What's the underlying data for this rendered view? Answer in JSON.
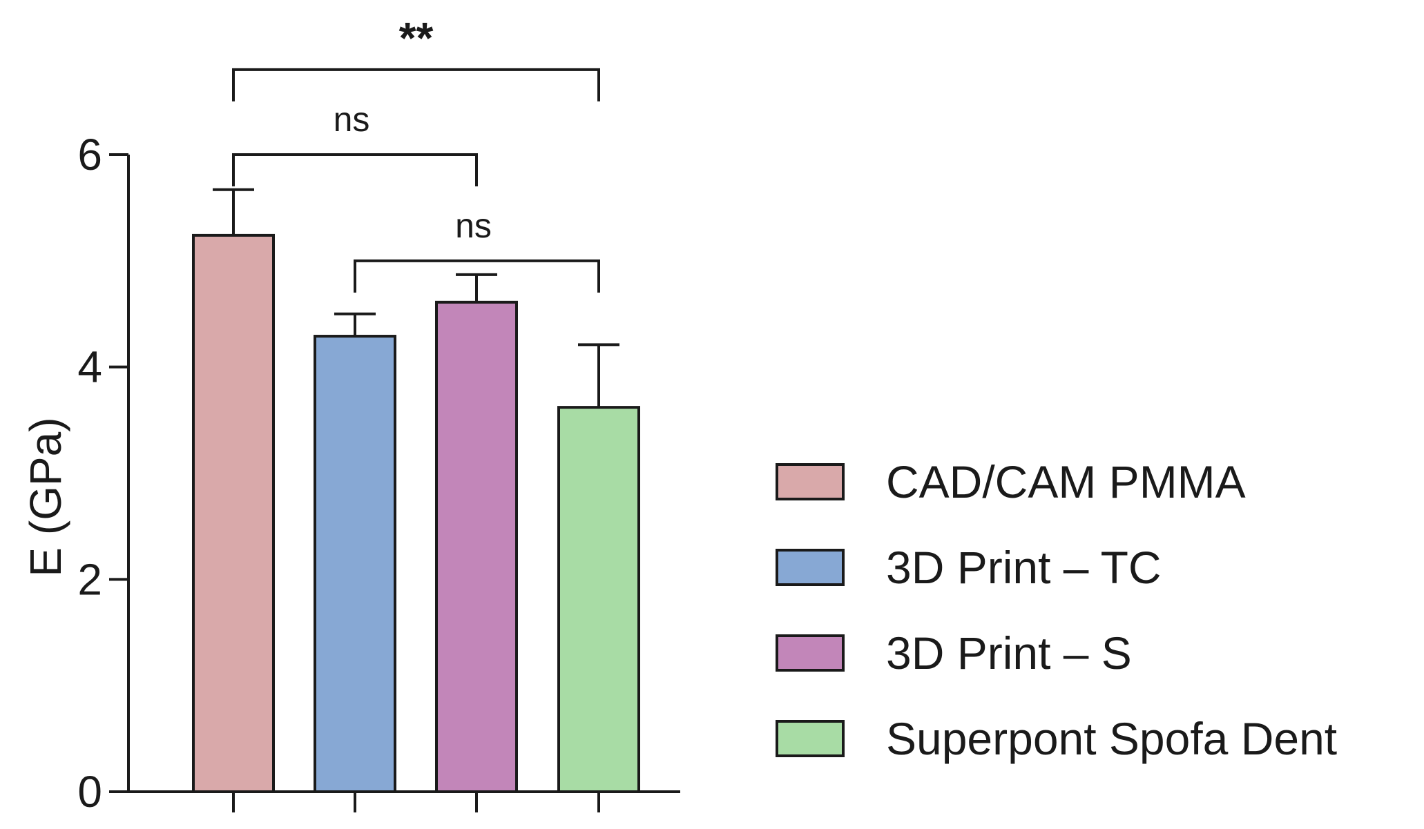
{
  "chart_data": {
    "type": "bar",
    "ylabel": "E (GPa)",
    "ylim": [
      0,
      6
    ],
    "yticks": [
      0,
      2,
      4,
      6
    ],
    "grid": false,
    "legend_position": "right",
    "categories": [
      "CAD/CAM PMMA",
      "3D Print – TC",
      "3D Print – S",
      "Superpont Spofa Dent"
    ],
    "values": [
      5.24,
      4.29,
      4.61,
      3.62
    ],
    "errors": [
      0.43,
      0.21,
      0.26,
      0.59
    ],
    "colors": [
      "#d9a9aa",
      "#87a8d4",
      "#c286b9",
      "#a8dca5"
    ],
    "significance": [
      {
        "from": 0,
        "to": 3,
        "label": "**",
        "level": 6.8
      },
      {
        "from": 0,
        "to": 2,
        "label": "ns",
        "level": 6.0
      },
      {
        "from": 1,
        "to": 3,
        "label": "ns",
        "level": 5.0
      }
    ]
  }
}
